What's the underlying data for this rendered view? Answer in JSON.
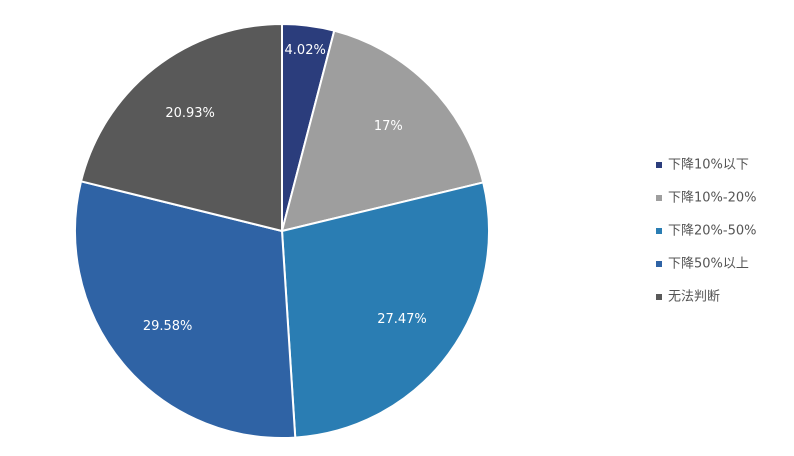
{
  "chart_data": {
    "type": "pie",
    "categories": [
      "下降10%以下",
      "下降10%-20%",
      "下降20%-50%",
      "下降50%以上",
      "无法判断"
    ],
    "values": [
      4.02,
      17,
      27.47,
      29.58,
      20.93
    ],
    "value_labels": [
      "4.02%",
      "17%",
      "27.47%",
      "29.58%",
      "20.93%"
    ],
    "colors": [
      "#2b3d7c",
      "#9e9e9e",
      "#2a7db3",
      "#2f63a5",
      "#595959"
    ],
    "legend": "right"
  }
}
